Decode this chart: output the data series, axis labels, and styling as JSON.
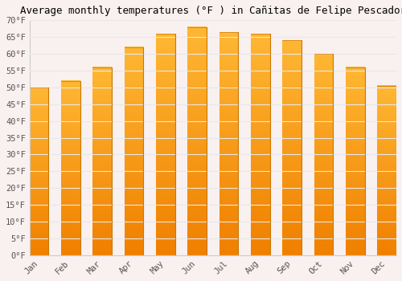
{
  "title": "Average monthly temperatures (°F ) in Cañitas de Felipe Pescador",
  "months": [
    "Jan",
    "Feb",
    "Mar",
    "Apr",
    "May",
    "Jun",
    "Jul",
    "Aug",
    "Sep",
    "Oct",
    "Nov",
    "Dec"
  ],
  "values": [
    50,
    52,
    56,
    62,
    66,
    68,
    66.5,
    66,
    64,
    60,
    56,
    50.5
  ],
  "bar_color_top": "#FFB733",
  "bar_color_bottom": "#F08000",
  "bar_edge_color": "#CC7700",
  "ylim": [
    0,
    70
  ],
  "yticks": [
    0,
    5,
    10,
    15,
    20,
    25,
    30,
    35,
    40,
    45,
    50,
    55,
    60,
    65,
    70
  ],
  "ytick_labels": [
    "0°F",
    "5°F",
    "10°F",
    "15°F",
    "20°F",
    "25°F",
    "30°F",
    "35°F",
    "40°F",
    "45°F",
    "50°F",
    "55°F",
    "60°F",
    "65°F",
    "70°F"
  ],
  "background_color": "#f9f0f0",
  "plot_bg_color": "#f9f0f0",
  "grid_color": "#e8e8e8",
  "title_fontsize": 9,
  "tick_fontsize": 7.5,
  "font_family": "monospace",
  "bar_width": 0.6
}
